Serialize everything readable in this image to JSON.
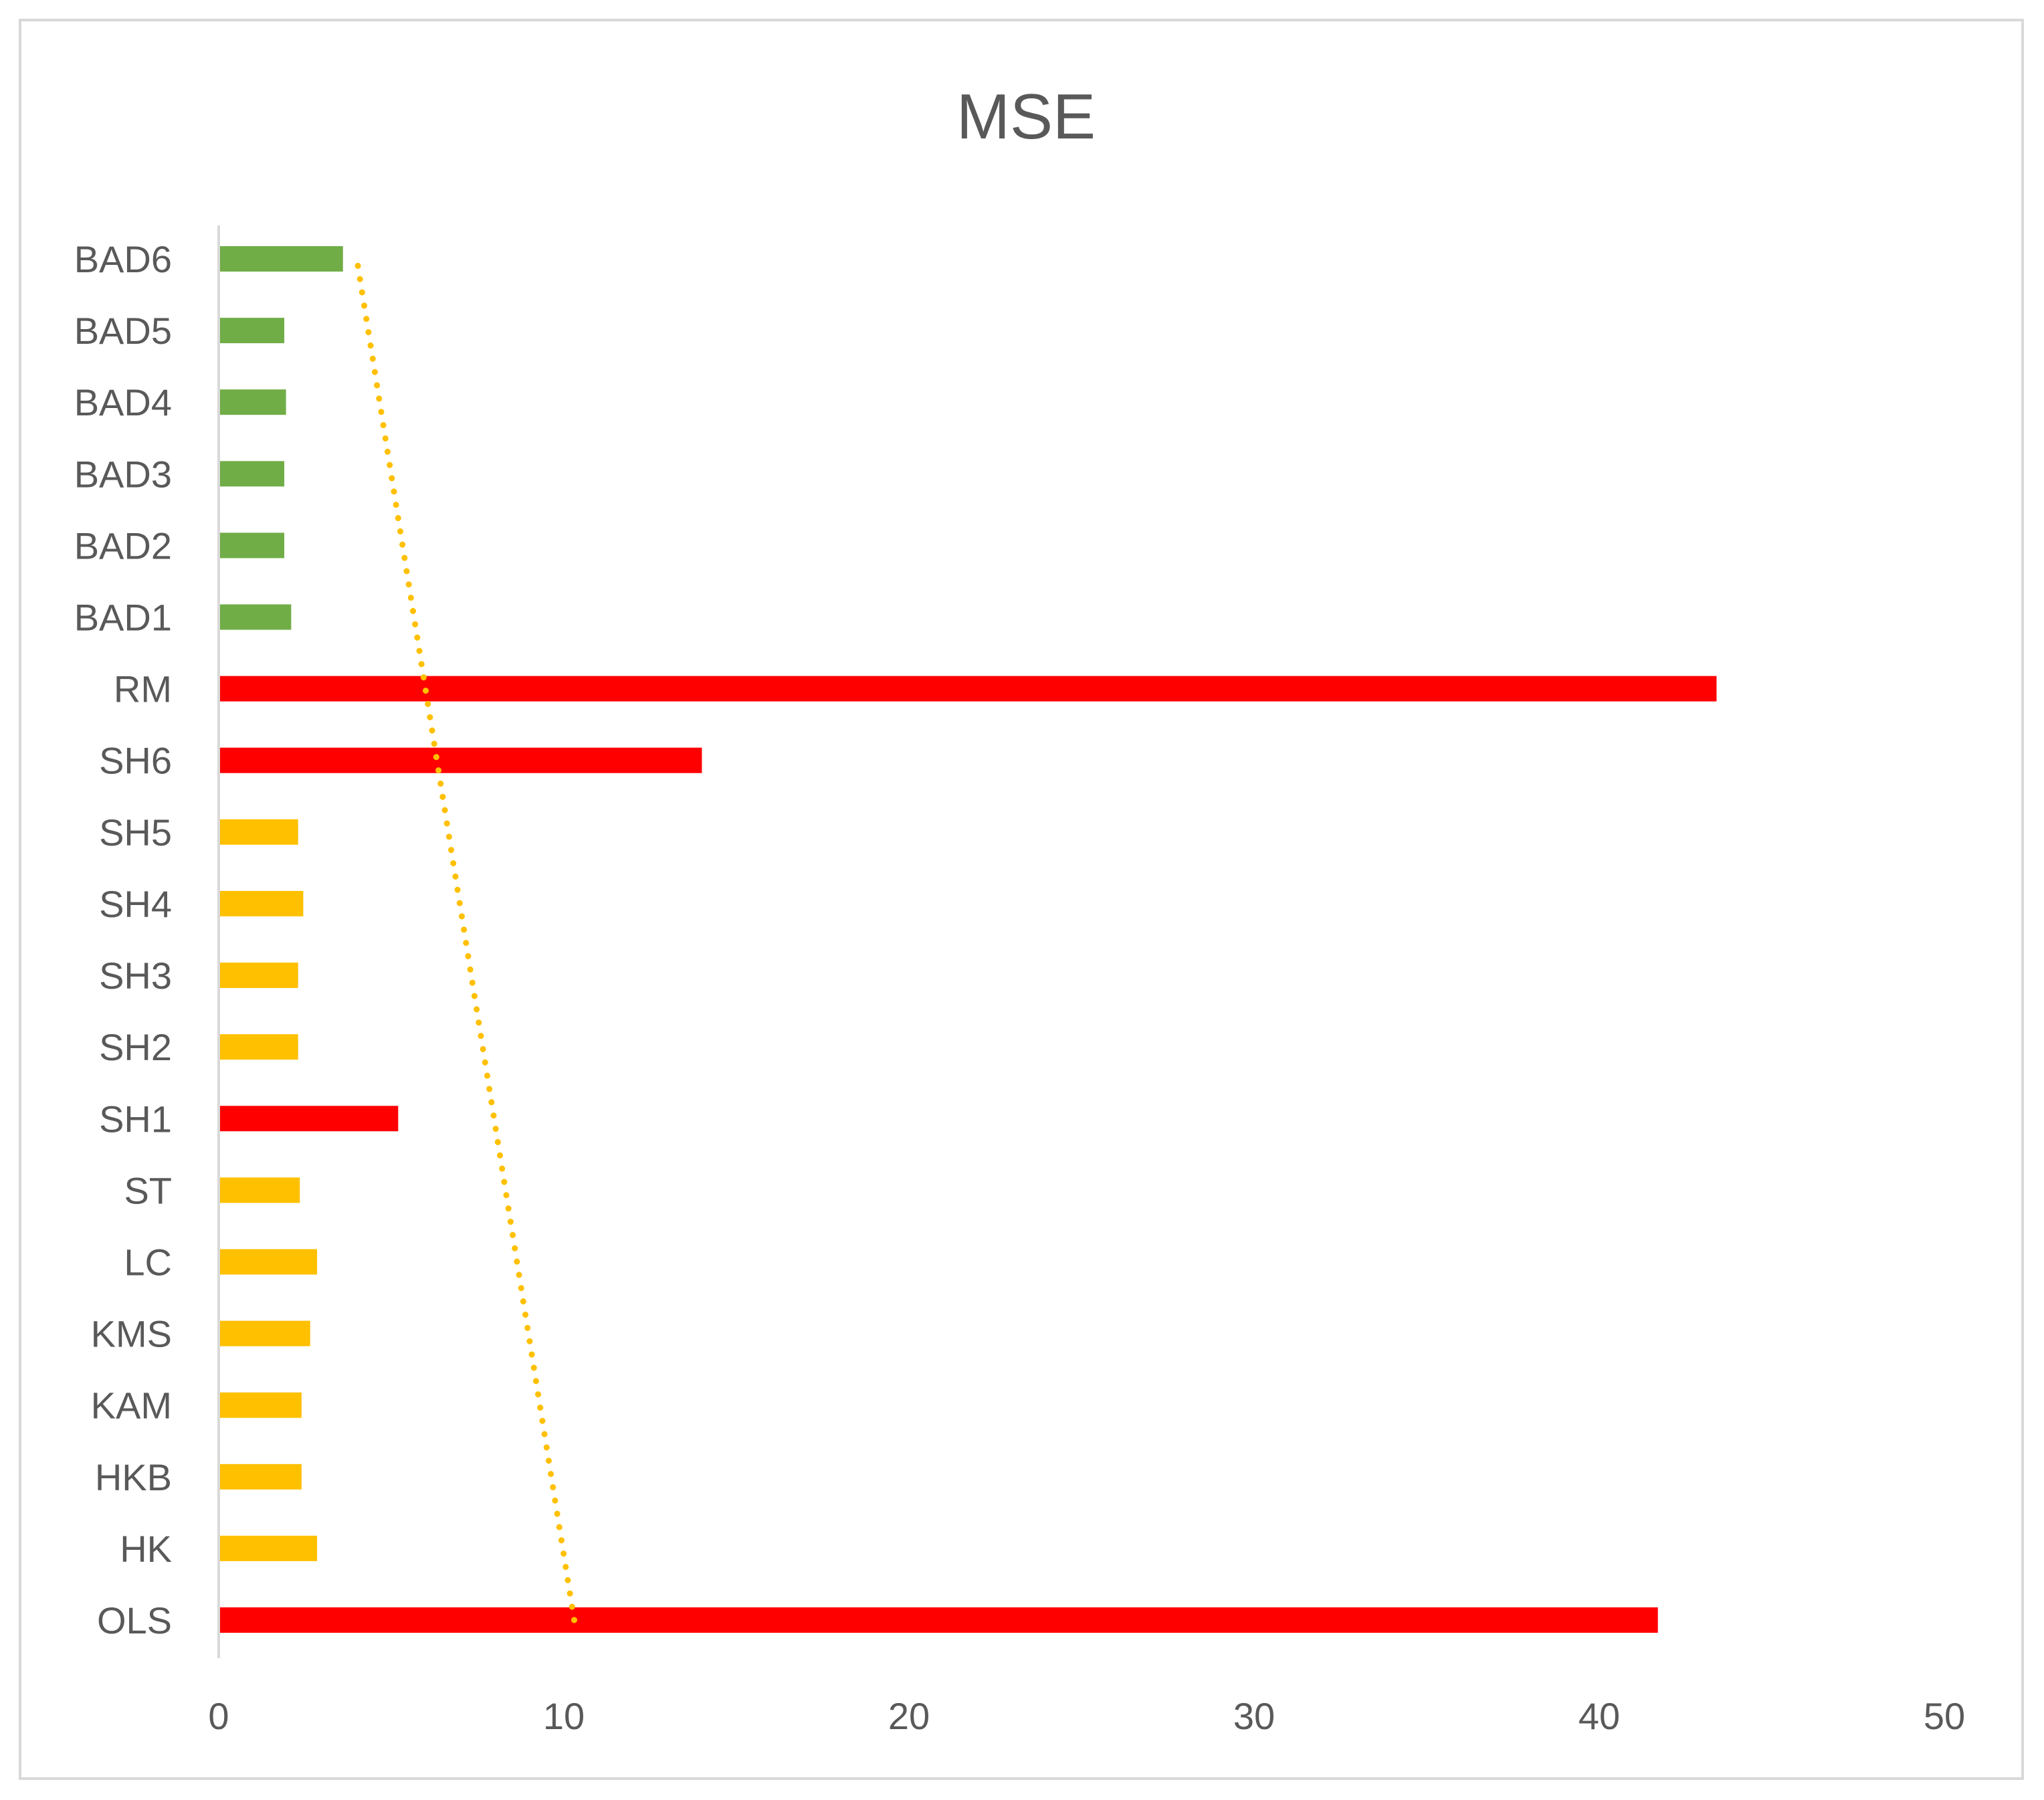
{
  "chart_data": {
    "type": "bar",
    "orientation": "horizontal",
    "title": "MSE",
    "xlabel": "",
    "ylabel": "",
    "xlim": [
      0,
      50
    ],
    "x_ticks": [
      "0",
      "10",
      "20",
      "30",
      "40",
      "50"
    ],
    "grid": false,
    "legend": "none",
    "categories": [
      "OLS",
      "HK",
      "HKB",
      "KAM",
      "KMS",
      "LC",
      "ST",
      "SH1",
      "SH2",
      "SH3",
      "SH4",
      "SH5",
      "SH6",
      "RM",
      "BAD1",
      "BAD2",
      "BAD3",
      "BAD4",
      "BAD5",
      "BAD6"
    ],
    "values": [
      41.7,
      2.85,
      2.4,
      2.4,
      2.65,
      2.85,
      2.35,
      5.2,
      2.3,
      2.3,
      2.45,
      2.3,
      14.0,
      43.4,
      2.1,
      1.9,
      1.9,
      1.95,
      1.9,
      3.6
    ],
    "bar_colors": [
      "#ff0000",
      "#ffc000",
      "#ffc000",
      "#ffc000",
      "#ffc000",
      "#ffc000",
      "#ffc000",
      "#ff0000",
      "#ffc000",
      "#ffc000",
      "#ffc000",
      "#ffc000",
      "#ff0000",
      "#ff0000",
      "#70ad47",
      "#70ad47",
      "#70ad47",
      "#70ad47",
      "#70ad47",
      "#70ad47"
    ],
    "trendline": {
      "style": "dotted",
      "color": "#ffc000",
      "from": {
        "category": "OLS",
        "value": 10.3
      },
      "to": {
        "category": "BAD6",
        "value": 4.0
      }
    },
    "colors": {
      "red": "#ff0000",
      "yellow": "#ffc000",
      "green": "#70ad47",
      "text": "#595959",
      "axis": "#d9d9d9"
    }
  }
}
